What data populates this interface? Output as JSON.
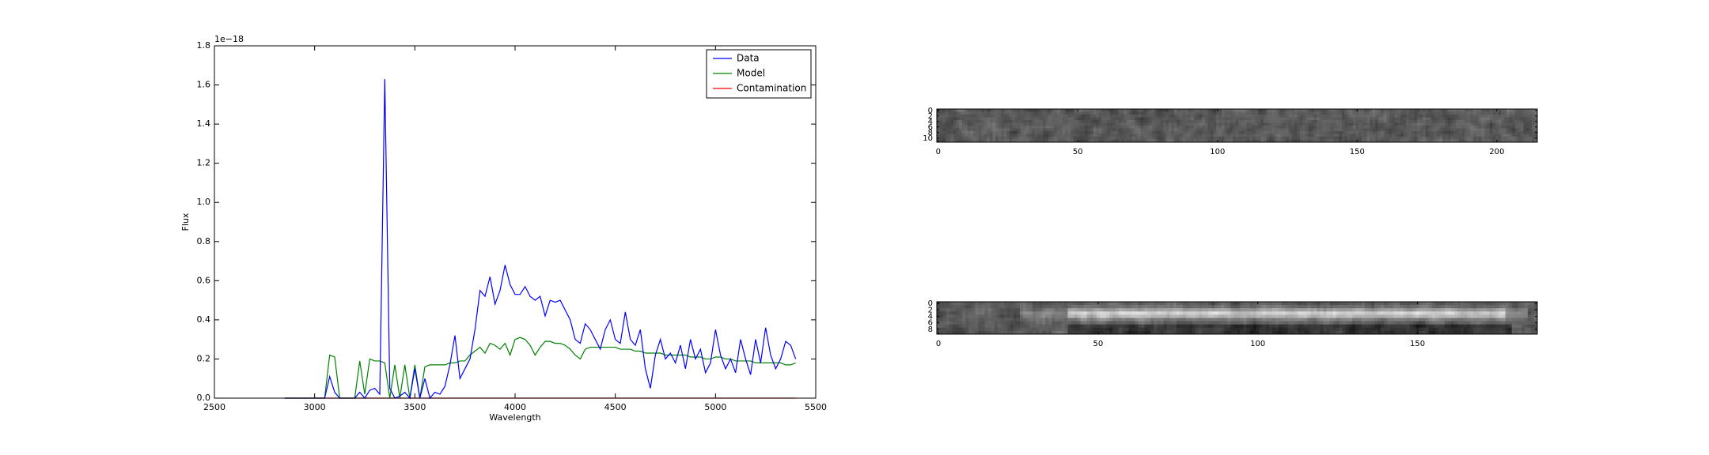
{
  "chart_data": [
    {
      "type": "line",
      "x_label": "Wavelength",
      "y_label": "Flux",
      "y_offset": "1e−18",
      "x": [
        2850,
        2875,
        2900,
        2925,
        2950,
        2975,
        3000,
        3025,
        3050,
        3075,
        3100,
        3125,
        3150,
        3175,
        3200,
        3225,
        3250,
        3275,
        3300,
        3325,
        3350,
        3375,
        3400,
        3425,
        3450,
        3475,
        3500,
        3525,
        3550,
        3575,
        3600,
        3625,
        3650,
        3675,
        3700,
        3725,
        3750,
        3775,
        3800,
        3825,
        3850,
        3875,
        3900,
        3925,
        3950,
        3975,
        4000,
        4025,
        4050,
        4075,
        4100,
        4125,
        4150,
        4175,
        4200,
        4225,
        4250,
        4275,
        4300,
        4325,
        4350,
        4375,
        4400,
        4425,
        4450,
        4475,
        4500,
        4525,
        4550,
        4575,
        4600,
        4625,
        4650,
        4675,
        4700,
        4725,
        4750,
        4775,
        4800,
        4825,
        4850,
        4875,
        4900,
        4925,
        4950,
        4975,
        5000,
        5025,
        5050,
        5075,
        5100,
        5125,
        5150,
        5175,
        5200,
        5225,
        5250,
        5275,
        5300,
        5325,
        5350,
        5375,
        5400
      ],
      "series": [
        {
          "name": "Contamination",
          "color": "#ff0000",
          "values": [
            0,
            0,
            0,
            0,
            0,
            0,
            0,
            0,
            0,
            0,
            0,
            0,
            0,
            0,
            0,
            0,
            0,
            0,
            0,
            0,
            0,
            0,
            0,
            0,
            0,
            0,
            0,
            0,
            0,
            0,
            0,
            0,
            0,
            0,
            0,
            0,
            0,
            0,
            0,
            0,
            0,
            0,
            0,
            0,
            0,
            0,
            0,
            0,
            0,
            0,
            0,
            0,
            0,
            0,
            0,
            0,
            0,
            0,
            0,
            0,
            0,
            0,
            0,
            0,
            0,
            0,
            0,
            0,
            0,
            0,
            0,
            0,
            0,
            0,
            0,
            0,
            0,
            0,
            0,
            0,
            0,
            0,
            0,
            0,
            0,
            0,
            0,
            0,
            0,
            0,
            0,
            0,
            0,
            0,
            0,
            0,
            0,
            0,
            0,
            0,
            0,
            0,
            0
          ]
        },
        {
          "name": "Model",
          "color": "#008000",
          "values": [
            0,
            0,
            0,
            0,
            0,
            0,
            0,
            0,
            0,
            0.22,
            0.21,
            0,
            0,
            0,
            0,
            0.19,
            0.02,
            0.2,
            0.19,
            0.19,
            0.18,
            0,
            0.17,
            0,
            0.17,
            0,
            0.17,
            0,
            0.16,
            0.17,
            0.17,
            0.17,
            0.17,
            0.18,
            0.18,
            0.19,
            0.19,
            0.22,
            0.24,
            0.26,
            0.23,
            0.28,
            0.27,
            0.25,
            0.28,
            0.22,
            0.3,
            0.31,
            0.3,
            0.27,
            0.22,
            0.26,
            0.29,
            0.29,
            0.28,
            0.28,
            0.27,
            0.25,
            0.22,
            0.2,
            0.25,
            0.26,
            0.26,
            0.26,
            0.26,
            0.26,
            0.26,
            0.25,
            0.25,
            0.25,
            0.24,
            0.24,
            0.23,
            0.23,
            0.23,
            0.23,
            0.22,
            0.22,
            0.22,
            0.22,
            0.22,
            0.21,
            0.21,
            0.21,
            0.2,
            0.2,
            0.21,
            0.21,
            0.2,
            0.2,
            0.19,
            0.19,
            0.19,
            0.19,
            0.18,
            0.18,
            0.18,
            0.18,
            0.18,
            0.18,
            0.17,
            0.17,
            0.18
          ]
        },
        {
          "name": "Data",
          "color": "#0000ff",
          "values": [
            0,
            0,
            0,
            0,
            0,
            0,
            0,
            0,
            0,
            0.11,
            0.03,
            0,
            0,
            0,
            0,
            0.03,
            0,
            0.04,
            0.05,
            0.02,
            1.63,
            0.05,
            0,
            0.01,
            0.03,
            0,
            0.15,
            0,
            0.1,
            0,
            0.03,
            0.02,
            0.06,
            0.17,
            0.32,
            0.1,
            0.15,
            0.2,
            0.35,
            0.55,
            0.52,
            0.62,
            0.48,
            0.55,
            0.68,
            0.58,
            0.53,
            0.53,
            0.57,
            0.52,
            0.5,
            0.52,
            0.42,
            0.5,
            0.49,
            0.5,
            0.45,
            0.4,
            0.3,
            0.28,
            0.38,
            0.35,
            0.3,
            0.25,
            0.35,
            0.4,
            0.3,
            0.28,
            0.44,
            0.3,
            0.27,
            0.35,
            0.15,
            0.05,
            0.22,
            0.3,
            0.2,
            0.23,
            0.18,
            0.27,
            0.15,
            0.3,
            0.2,
            0.25,
            0.13,
            0.18,
            0.35,
            0.22,
            0.15,
            0.2,
            0.13,
            0.3,
            0.2,
            0.12,
            0.3,
            0.18,
            0.36,
            0.22,
            0.15,
            0.2,
            0.29,
            0.27,
            0.2
          ]
        }
      ],
      "legend_order": [
        "Data",
        "Model",
        "Contamination"
      ],
      "legend": "upper right",
      "xlim": [
        2500,
        5500
      ],
      "xticks": [
        2500,
        3000,
        3500,
        4000,
        4500,
        5000,
        5500
      ],
      "ylim": [
        0,
        1.8
      ],
      "yticks": [
        {
          "value": 0,
          "label": "0.0"
        },
        {
          "value": 0.2,
          "label": "0.2"
        },
        {
          "value": 0.4,
          "label": "0.4"
        },
        {
          "value": 0.6,
          "label": "0.6"
        },
        {
          "value": 0.8,
          "label": "0.8"
        },
        {
          "value": 1,
          "label": "1.0"
        },
        {
          "value": 1.2,
          "label": "1.2"
        },
        {
          "value": 1.4,
          "label": "1.4"
        },
        {
          "value": 1.6,
          "label": "1.6"
        },
        {
          "value": 1.8,
          "label": "1.8"
        }
      ]
    },
    {
      "type": "image",
      "xlim": [
        -0.5,
        214.5
      ],
      "xticks": [
        0,
        50,
        100,
        150,
        200
      ],
      "ylim": [
        11.5,
        -0.5
      ],
      "yticks": [
        0,
        2,
        4,
        6,
        8,
        10
      ]
    },
    {
      "type": "image",
      "xlim": [
        -0.5,
        187.5
      ],
      "xticks": [
        0,
        50,
        100,
        150
      ],
      "ylim": [
        9.5,
        -0.5
      ],
      "yticks": [
        0,
        2,
        4,
        6,
        8
      ]
    }
  ]
}
